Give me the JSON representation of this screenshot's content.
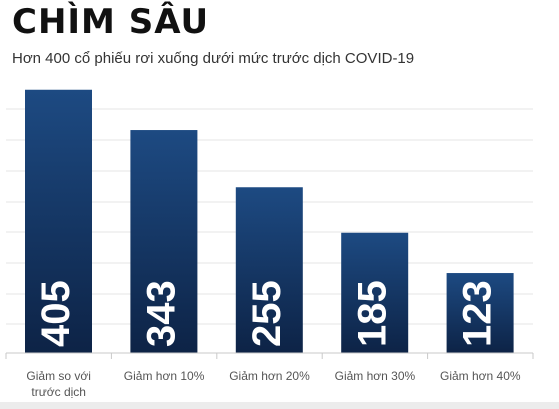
{
  "title": "CHÌM SÂU",
  "subtitle": "Hơn 400 cổ phiếu rơi xuống dưới mức trước dịch COVID-19",
  "colors": {
    "bar_top": "#1d4a82",
    "bar_bottom": "#0d2346",
    "grid": "#e6e6e6",
    "axis": "#c9c9c9",
    "label": "#555555"
  },
  "chart_data": {
    "type": "bar",
    "categories": [
      "Giảm so với trước dịch",
      "Giảm hơn 10%",
      "Giảm hơn 20%",
      "Giảm hơn 30%",
      "Giảm hơn 40%"
    ],
    "category_lines": [
      [
        "Giảm so với",
        "trước dịch"
      ],
      [
        "Giảm hơn 10%"
      ],
      [
        "Giảm hơn 20%"
      ],
      [
        "Giảm hơn 30%"
      ],
      [
        "Giảm hơn 40%"
      ]
    ],
    "values": [
      405,
      343,
      255,
      185,
      123
    ],
    "value_labels": [
      "405",
      "343",
      "255",
      "185",
      "123"
    ],
    "ylim": [
      0,
      420
    ],
    "grid": true
  }
}
